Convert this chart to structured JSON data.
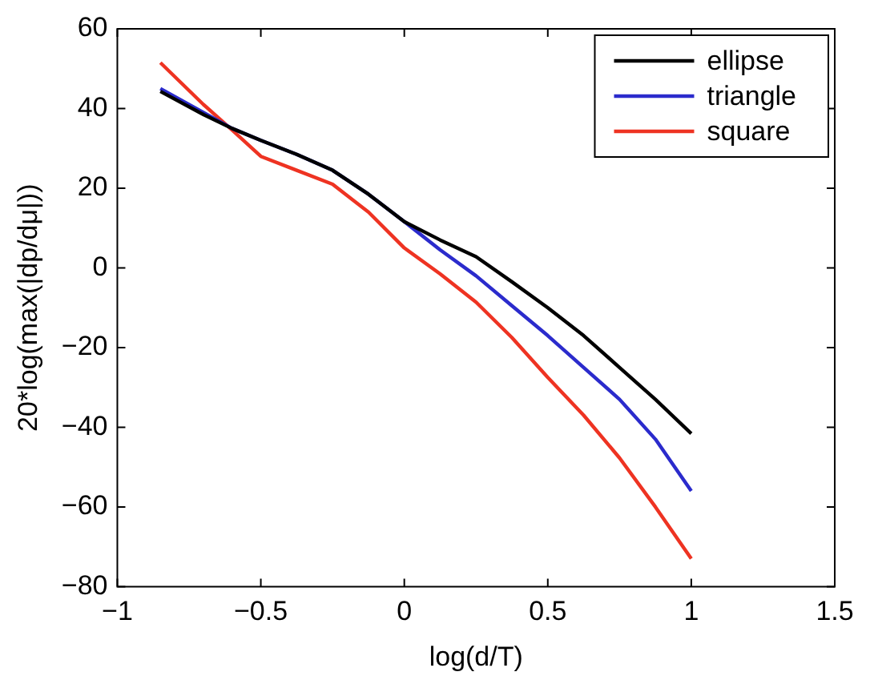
{
  "chart_data": {
    "type": "line",
    "xlabel": "log(d/T)",
    "ylabel": "20*log(max(|dp/dμ|))",
    "x": [
      -0.85,
      -0.7,
      -0.6,
      -0.5,
      -0.375,
      -0.25,
      -0.125,
      0,
      0.125,
      0.25,
      0.375,
      0.5,
      0.625,
      0.75,
      0.875,
      1
    ],
    "series": [
      {
        "name": "ellipse",
        "color": "#000000",
        "values": [
          44.3,
          38.5,
          35,
          32,
          28.5,
          24.5,
          18.5,
          11.6,
          7,
          2.8,
          -3.5,
          -10,
          -17,
          -25,
          -33,
          -41.6
        ]
      },
      {
        "name": "triangle",
        "color": "#2b2bcc",
        "values": [
          45,
          39,
          35,
          32,
          28.5,
          24.5,
          18.5,
          11.6,
          4.5,
          -2,
          -9.5,
          -17,
          -25,
          -33,
          -43,
          -56
        ]
      },
      {
        "name": "square",
        "color": "#ee3322",
        "values": [
          51.5,
          41,
          34.6,
          28,
          24.5,
          21,
          14,
          5,
          -1.5,
          -8.6,
          -17.5,
          -27.5,
          -37,
          -47.7,
          -60,
          -73
        ]
      }
    ],
    "xlim": [
      -1,
      1.5
    ],
    "xticks": [
      -1,
      -0.5,
      0,
      0.5,
      1,
      1.5
    ],
    "ylim": [
      -80,
      60
    ],
    "yticks": [
      -80,
      -60,
      -40,
      -20,
      0,
      20,
      40,
      60
    ],
    "grid": false,
    "legend": "top right",
    "marker": "none",
    "line_style": "solid"
  }
}
